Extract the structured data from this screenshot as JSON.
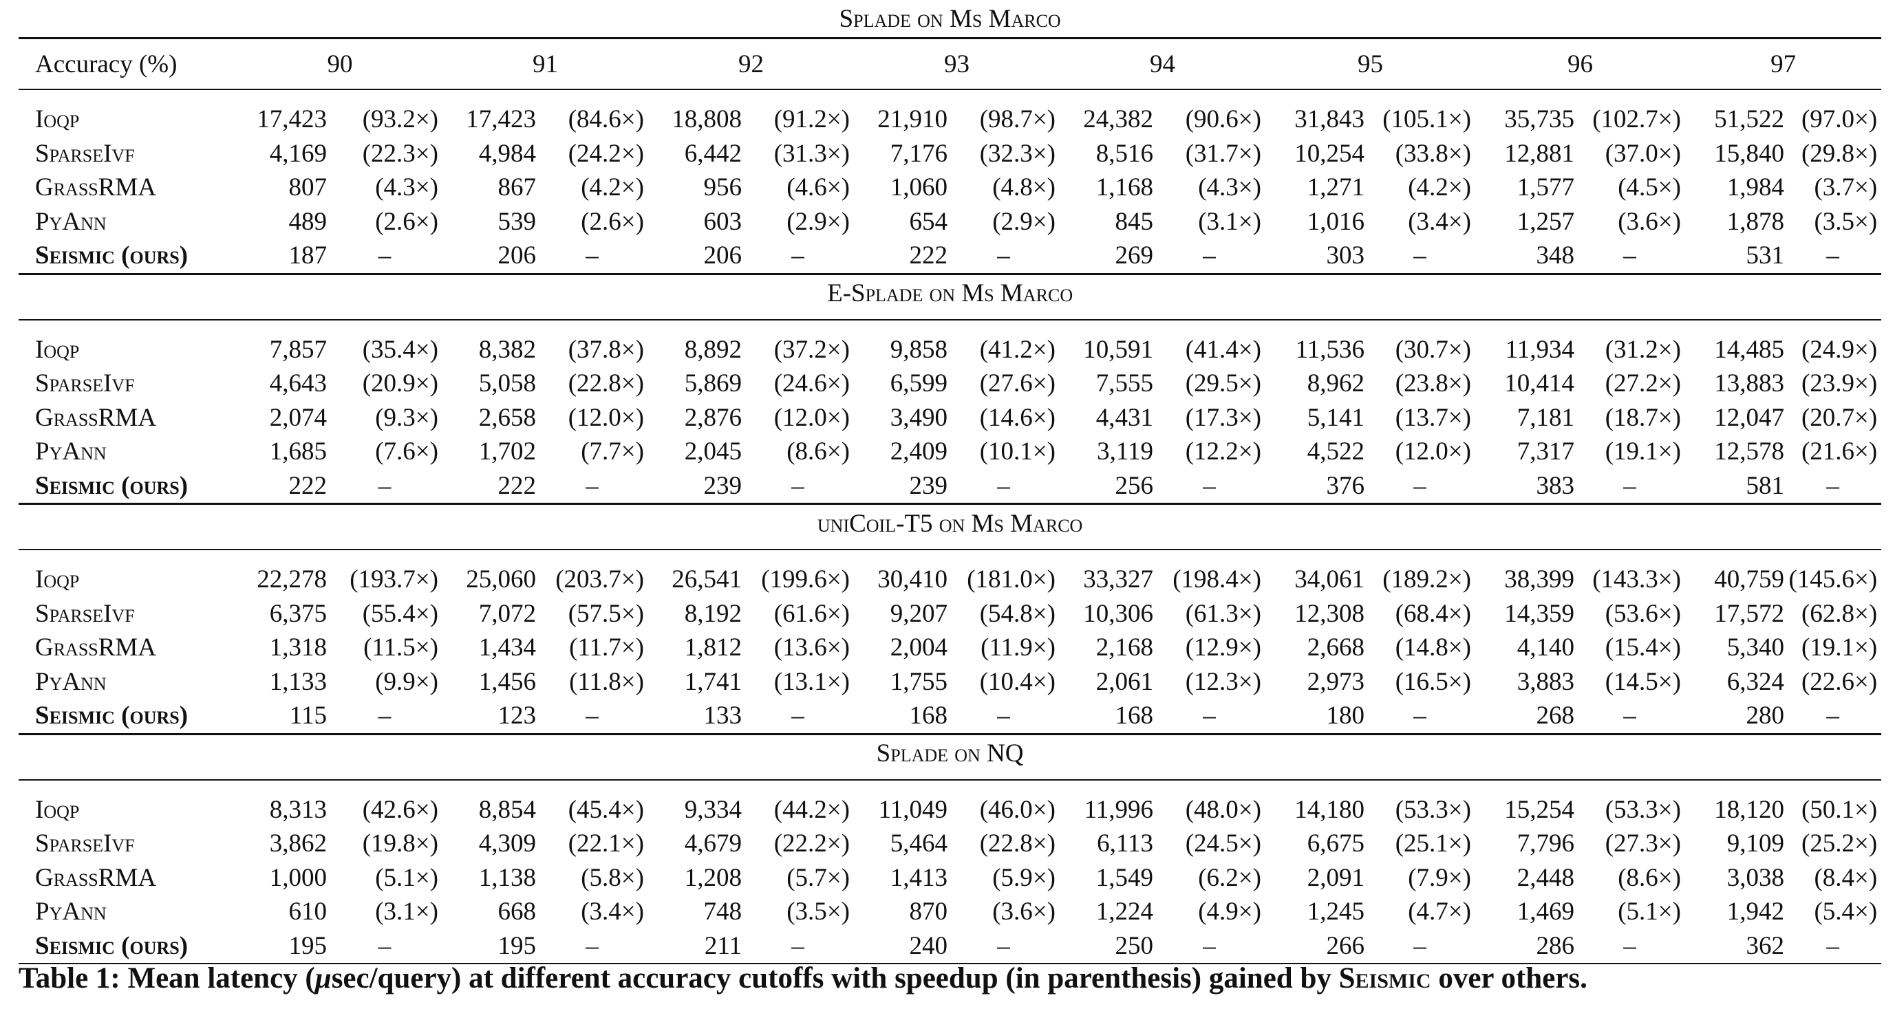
{
  "header": {
    "accuracy_label": "Accuracy (%)",
    "cutoffs": [
      "90",
      "91",
      "92",
      "93",
      "94",
      "95",
      "96",
      "97"
    ]
  },
  "sections": [
    {
      "title": "Splade on Ms Marco",
      "rows": [
        {
          "method": "Ioqp",
          "values": [
            "17,423",
            "(93.2×)",
            "17,423",
            "(84.6×)",
            "18,808",
            "(91.2×)",
            "21,910",
            "(98.7×)",
            "24,382",
            "(90.6×)",
            "31,843",
            "(105.1×)",
            "35,735",
            "(102.7×)",
            "51,522",
            "(97.0×)"
          ]
        },
        {
          "method": "SparseIvf",
          "values": [
            "4,169",
            "(22.3×)",
            "4,984",
            "(24.2×)",
            "6,442",
            "(31.3×)",
            "7,176",
            "(32.3×)",
            "8,516",
            "(31.7×)",
            "10,254",
            "(33.8×)",
            "12,881",
            "(37.0×)",
            "15,840",
            "(29.8×)"
          ]
        },
        {
          "method": "GrassRMA",
          "values": [
            "807",
            "(4.3×)",
            "867",
            "(4.2×)",
            "956",
            "(4.6×)",
            "1,060",
            "(4.8×)",
            "1,168",
            "(4.3×)",
            "1,271",
            "(4.2×)",
            "1,577",
            "(4.5×)",
            "1,984",
            "(3.7×)"
          ]
        },
        {
          "method": "PyAnn",
          "values": [
            "489",
            "(2.6×)",
            "539",
            "(2.6×)",
            "603",
            "(2.9×)",
            "654",
            "(2.9×)",
            "845",
            "(3.1×)",
            "1,016",
            "(3.4×)",
            "1,257",
            "(3.6×)",
            "1,878",
            "(3.5×)"
          ]
        },
        {
          "method": "Seismic (ours)",
          "ours": true,
          "values": [
            "187",
            "–",
            "206",
            "–",
            "206",
            "–",
            "222",
            "–",
            "269",
            "–",
            "303",
            "–",
            "348",
            "–",
            "531",
            "–"
          ]
        }
      ]
    },
    {
      "title": "E-Splade on Ms Marco",
      "rows": [
        {
          "method": "Ioqp",
          "values": [
            "7,857",
            "(35.4×)",
            "8,382",
            "(37.8×)",
            "8,892",
            "(37.2×)",
            "9,858",
            "(41.2×)",
            "10,591",
            "(41.4×)",
            "11,536",
            "(30.7×)",
            "11,934",
            "(31.2×)",
            "14,485",
            "(24.9×)"
          ]
        },
        {
          "method": "SparseIvf",
          "values": [
            "4,643",
            "(20.9×)",
            "5,058",
            "(22.8×)",
            "5,869",
            "(24.6×)",
            "6,599",
            "(27.6×)",
            "7,555",
            "(29.5×)",
            "8,962",
            "(23.8×)",
            "10,414",
            "(27.2×)",
            "13,883",
            "(23.9×)"
          ]
        },
        {
          "method": "GrassRMA",
          "values": [
            "2,074",
            "(9.3×)",
            "2,658",
            "(12.0×)",
            "2,876",
            "(12.0×)",
            "3,490",
            "(14.6×)",
            "4,431",
            "(17.3×)",
            "5,141",
            "(13.7×)",
            "7,181",
            "(18.7×)",
            "12,047",
            "(20.7×)"
          ]
        },
        {
          "method": "PyAnn",
          "values": [
            "1,685",
            "(7.6×)",
            "1,702",
            "(7.7×)",
            "2,045",
            "(8.6×)",
            "2,409",
            "(10.1×)",
            "3,119",
            "(12.2×)",
            "4,522",
            "(12.0×)",
            "7,317",
            "(19.1×)",
            "12,578",
            "(21.6×)"
          ]
        },
        {
          "method": "Seismic (ours)",
          "ours": true,
          "values": [
            "222",
            "–",
            "222",
            "–",
            "239",
            "–",
            "239",
            "–",
            "256",
            "–",
            "376",
            "–",
            "383",
            "–",
            "581",
            "–"
          ]
        }
      ]
    },
    {
      "title": "uniCoil-T5 on Ms Marco",
      "rows": [
        {
          "method": "Ioqp",
          "values": [
            "22,278",
            "(193.7×)",
            "25,060",
            "(203.7×)",
            "26,541",
            "(199.6×)",
            "30,410",
            "(181.0×)",
            "33,327",
            "(198.4×)",
            "34,061",
            "(189.2×)",
            "38,399",
            "(143.3×)",
            "40,759",
            "(145.6×)"
          ]
        },
        {
          "method": "SparseIvf",
          "values": [
            "6,375",
            "(55.4×)",
            "7,072",
            "(57.5×)",
            "8,192",
            "(61.6×)",
            "9,207",
            "(54.8×)",
            "10,306",
            "(61.3×)",
            "12,308",
            "(68.4×)",
            "14,359",
            "(53.6×)",
            "17,572",
            "(62.8×)"
          ]
        },
        {
          "method": "GrassRMA",
          "values": [
            "1,318",
            "(11.5×)",
            "1,434",
            "(11.7×)",
            "1,812",
            "(13.6×)",
            "2,004",
            "(11.9×)",
            "2,168",
            "(12.9×)",
            "2,668",
            "(14.8×)",
            "4,140",
            "(15.4×)",
            "5,340",
            "(19.1×)"
          ]
        },
        {
          "method": "PyAnn",
          "values": [
            "1,133",
            "(9.9×)",
            "1,456",
            "(11.8×)",
            "1,741",
            "(13.1×)",
            "1,755",
            "(10.4×)",
            "2,061",
            "(12.3×)",
            "2,973",
            "(16.5×)",
            "3,883",
            "(14.5×)",
            "6,324",
            "(22.6×)"
          ]
        },
        {
          "method": "Seismic (ours)",
          "ours": true,
          "values": [
            "115",
            "–",
            "123",
            "–",
            "133",
            "–",
            "168",
            "–",
            "168",
            "–",
            "180",
            "–",
            "268",
            "–",
            "280",
            "–"
          ]
        }
      ]
    },
    {
      "title": "Splade on NQ",
      "rows": [
        {
          "method": "Ioqp",
          "values": [
            "8,313",
            "(42.6×)",
            "8,854",
            "(45.4×)",
            "9,334",
            "(44.2×)",
            "11,049",
            "(46.0×)",
            "11,996",
            "(48.0×)",
            "14,180",
            "(53.3×)",
            "15,254",
            "(53.3×)",
            "18,120",
            "(50.1×)"
          ]
        },
        {
          "method": "SparseIvf",
          "values": [
            "3,862",
            "(19.8×)",
            "4,309",
            "(22.1×)",
            "4,679",
            "(22.2×)",
            "5,464",
            "(22.8×)",
            "6,113",
            "(24.5×)",
            "6,675",
            "(25.1×)",
            "7,796",
            "(27.3×)",
            "9,109",
            "(25.2×)"
          ]
        },
        {
          "method": "GrassRMA",
          "values": [
            "1,000",
            "(5.1×)",
            "1,138",
            "(5.8×)",
            "1,208",
            "(5.7×)",
            "1,413",
            "(5.9×)",
            "1,549",
            "(6.2×)",
            "2,091",
            "(7.9×)",
            "2,448",
            "(8.6×)",
            "3,038",
            "(8.4×)"
          ]
        },
        {
          "method": "PyAnn",
          "values": [
            "610",
            "(3.1×)",
            "668",
            "(3.4×)",
            "748",
            "(3.5×)",
            "870",
            "(3.6×)",
            "1,224",
            "(4.9×)",
            "1,245",
            "(4.7×)",
            "1,469",
            "(5.1×)",
            "1,942",
            "(5.4×)"
          ]
        },
        {
          "method": "Seismic (ours)",
          "ours": true,
          "values": [
            "195",
            "–",
            "195",
            "–",
            "211",
            "–",
            "240",
            "–",
            "250",
            "–",
            "266",
            "–",
            "286",
            "–",
            "362",
            "–"
          ]
        }
      ]
    }
  ],
  "caption": {
    "prefix": "Table 1: Mean latency (",
    "mu": "μ",
    "middle": "sec/query) at different accuracy cutoffs with speedup (in parenthesis) gained by ",
    "seismic": "Seismic",
    "suffix": " over others."
  }
}
